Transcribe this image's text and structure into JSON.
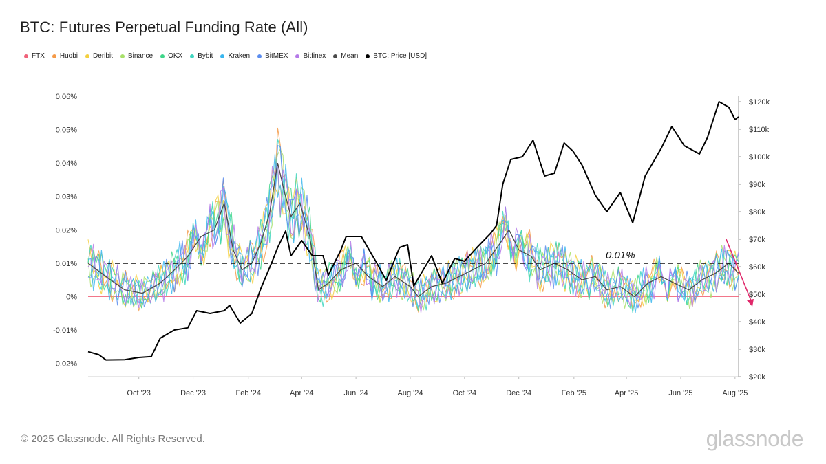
{
  "title": "BTC: Futures Perpetual Funding Rate (All)",
  "legend": [
    {
      "name": "FTX",
      "color": "#f0627a"
    },
    {
      "name": "Huobi",
      "color": "#f59a48"
    },
    {
      "name": "Deribit",
      "color": "#f4d03f"
    },
    {
      "name": "Binance",
      "color": "#a8e06a"
    },
    {
      "name": "OKX",
      "color": "#3fd68a"
    },
    {
      "name": "Bybit",
      "color": "#3fd6c0"
    },
    {
      "name": "Kraken",
      "color": "#39b6ef"
    },
    {
      "name": "BitMEX",
      "color": "#5b8def"
    },
    {
      "name": "Bitfinex",
      "color": "#b57ae8"
    },
    {
      "name": "Mean",
      "color": "#4a4a4a"
    },
    {
      "name": "BTC: Price [USD]",
      "color": "#000000"
    }
  ],
  "footer": "© 2025 Glassnode. All Rights Reserved.",
  "brand": "glassnode",
  "chart_data": {
    "type": "line",
    "x_ticks": [
      "Oct '23",
      "Dec '23",
      "Feb '24",
      "Apr '24",
      "Jun '24",
      "Aug '24",
      "Oct '24",
      "Dec '24",
      "Feb '25",
      "Apr '25",
      "Jun '25",
      "Aug '25"
    ],
    "x_range": [
      "2023-08-05",
      "2025-08-05"
    ],
    "left_axis": {
      "unit": "funding rate",
      "range": [
        -0.024,
        0.06
      ],
      "ticks": [
        "-0.02%",
        "-0.01%",
        "0%",
        "0.01%",
        "0.02%",
        "0.03%",
        "0.04%",
        "0.05%",
        "0.06%"
      ]
    },
    "right_axis": {
      "unit": "USD",
      "range": [
        20000,
        122000
      ],
      "ticks": [
        "$20k",
        "$30k",
        "$40k",
        "$50k",
        "$60k",
        "$70k",
        "$80k",
        "$90k",
        "$100k",
        "$110k",
        "$120k"
      ]
    },
    "reference_line": {
      "value": 0.01,
      "label": "0.01%",
      "style": "dashed"
    },
    "zero_line_color": "#f0627a",
    "mean_series": [
      [
        "2023-08-05",
        0.01
      ],
      [
        "2023-08-25",
        0.006
      ],
      [
        "2023-09-15",
        0.002
      ],
      [
        "2023-10-05",
        0.001
      ],
      [
        "2023-10-25",
        0.004
      ],
      [
        "2023-11-10",
        0.008
      ],
      [
        "2023-11-25",
        0.012
      ],
      [
        "2023-12-10",
        0.018
      ],
      [
        "2023-12-25",
        0.02
      ],
      [
        "2024-01-05",
        0.028
      ],
      [
        "2024-01-15",
        0.014
      ],
      [
        "2024-01-25",
        0.008
      ],
      [
        "2024-02-05",
        0.01
      ],
      [
        "2024-02-15",
        0.016
      ],
      [
        "2024-02-25",
        0.025
      ],
      [
        "2024-03-05",
        0.04
      ],
      [
        "2024-03-12",
        0.032
      ],
      [
        "2024-03-20",
        0.024
      ],
      [
        "2024-03-30",
        0.028
      ],
      [
        "2024-04-10",
        0.018
      ],
      [
        "2024-04-20",
        0.002
      ],
      [
        "2024-05-01",
        0.004
      ],
      [
        "2024-05-15",
        0.008
      ],
      [
        "2024-06-01",
        0.01
      ],
      [
        "2024-06-15",
        0.006
      ],
      [
        "2024-07-01",
        0.003
      ],
      [
        "2024-07-15",
        0.006
      ],
      [
        "2024-08-01",
        0.003
      ],
      [
        "2024-08-10",
        0.0
      ],
      [
        "2024-08-25",
        0.003
      ],
      [
        "2024-09-10",
        0.004
      ],
      [
        "2024-09-25",
        0.006
      ],
      [
        "2024-10-10",
        0.008
      ],
      [
        "2024-10-25",
        0.01
      ],
      [
        "2024-11-10",
        0.016
      ],
      [
        "2024-11-20",
        0.02
      ],
      [
        "2024-12-01",
        0.014
      ],
      [
        "2024-12-15",
        0.012
      ],
      [
        "2024-12-25",
        0.008
      ],
      [
        "2025-01-10",
        0.01
      ],
      [
        "2025-01-25",
        0.008
      ],
      [
        "2025-02-10",
        0.005
      ],
      [
        "2025-02-25",
        0.006
      ],
      [
        "2025-03-10",
        0.002
      ],
      [
        "2025-03-25",
        0.003
      ],
      [
        "2025-04-10",
        0.0
      ],
      [
        "2025-04-25",
        0.004
      ],
      [
        "2025-05-10",
        0.006
      ],
      [
        "2025-05-25",
        0.004
      ],
      [
        "2025-06-10",
        0.002
      ],
      [
        "2025-06-25",
        0.005
      ],
      [
        "2025-07-10",
        0.007
      ],
      [
        "2025-07-25",
        0.01
      ],
      [
        "2025-08-05",
        0.007
      ]
    ],
    "btc_price": [
      [
        "2023-08-05",
        29100
      ],
      [
        "2023-08-17",
        28000
      ],
      [
        "2023-08-25",
        26100
      ],
      [
        "2023-09-15",
        26200
      ],
      [
        "2023-10-01",
        27000
      ],
      [
        "2023-10-15",
        27300
      ],
      [
        "2023-10-25",
        34000
      ],
      [
        "2023-11-10",
        37000
      ],
      [
        "2023-11-25",
        37800
      ],
      [
        "2023-12-05",
        44000
      ],
      [
        "2023-12-20",
        43000
      ],
      [
        "2024-01-05",
        44000
      ],
      [
        "2024-01-11",
        46000
      ],
      [
        "2024-01-23",
        39500
      ],
      [
        "2024-02-05",
        43000
      ],
      [
        "2024-02-15",
        52000
      ],
      [
        "2024-02-28",
        62000
      ],
      [
        "2024-03-05",
        67000
      ],
      [
        "2024-03-14",
        73000
      ],
      [
        "2024-03-20",
        64000
      ],
      [
        "2024-04-01",
        69500
      ],
      [
        "2024-04-13",
        64000
      ],
      [
        "2024-04-25",
        64000
      ],
      [
        "2024-05-01",
        57000
      ],
      [
        "2024-05-15",
        66000
      ],
      [
        "2024-05-21",
        71000
      ],
      [
        "2024-06-07",
        71000
      ],
      [
        "2024-06-25",
        61000
      ],
      [
        "2024-07-05",
        55000
      ],
      [
        "2024-07-20",
        67000
      ],
      [
        "2024-07-29",
        68000
      ],
      [
        "2024-08-05",
        53000
      ],
      [
        "2024-08-25",
        64000
      ],
      [
        "2024-09-06",
        54000
      ],
      [
        "2024-09-20",
        63000
      ],
      [
        "2024-10-01",
        62000
      ],
      [
        "2024-10-15",
        67000
      ],
      [
        "2024-10-30",
        72000
      ],
      [
        "2024-11-06",
        75000
      ],
      [
        "2024-11-13",
        90000
      ],
      [
        "2024-11-22",
        99000
      ],
      [
        "2024-12-05",
        100000
      ],
      [
        "2024-12-17",
        106000
      ],
      [
        "2024-12-30",
        93000
      ],
      [
        "2025-01-10",
        94000
      ],
      [
        "2025-01-21",
        105000
      ],
      [
        "2025-01-31",
        102000
      ],
      [
        "2025-02-10",
        97000
      ],
      [
        "2025-02-25",
        86000
      ],
      [
        "2025-03-10",
        80000
      ],
      [
        "2025-03-25",
        87000
      ],
      [
        "2025-04-08",
        76000
      ],
      [
        "2025-04-22",
        93000
      ],
      [
        "2025-05-10",
        103000
      ],
      [
        "2025-05-22",
        111000
      ],
      [
        "2025-06-05",
        104000
      ],
      [
        "2025-06-22",
        101000
      ],
      [
        "2025-07-01",
        107000
      ],
      [
        "2025-07-14",
        120000
      ],
      [
        "2025-07-25",
        118000
      ],
      [
        "2025-08-01",
        113500
      ],
      [
        "2025-08-05",
        114500
      ]
    ]
  }
}
